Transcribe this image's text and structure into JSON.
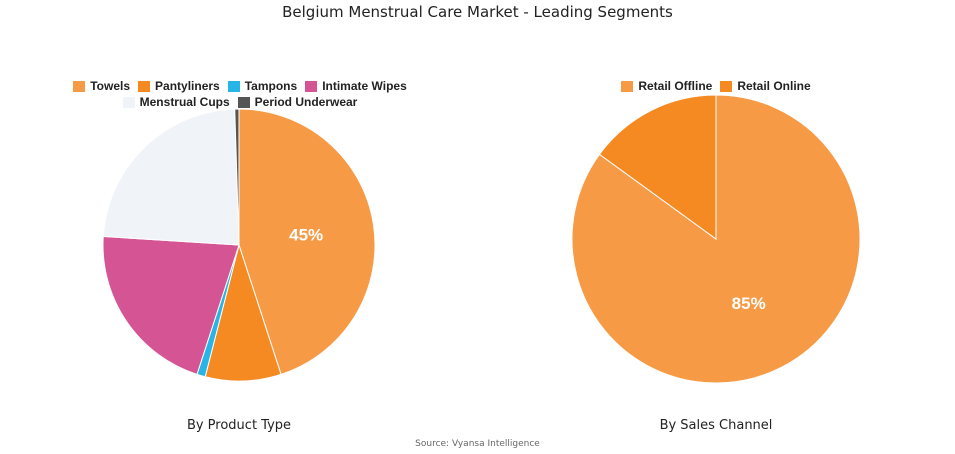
{
  "title": "Belgium Menstrual Care Market - Leading Segments",
  "source": "Source: Vyansa Intelligence",
  "chart_data": [
    {
      "type": "pie",
      "title": "By Product Type",
      "legend_position": "top",
      "slices": [
        {
          "label": "Towels",
          "value": 45,
          "color": "#F79A45",
          "data_label": "45%"
        },
        {
          "label": "Pantyliners",
          "value": 9,
          "color": "#F58A23",
          "data_label": ""
        },
        {
          "label": "Tampons",
          "value": 1,
          "color": "#27B4E6",
          "data_label": ""
        },
        {
          "label": "Intimate Wipes",
          "value": 21,
          "color": "#D55594",
          "data_label": ""
        },
        {
          "label": "Menstrual Cups",
          "value": 23.5,
          "color": "#F0F4F8",
          "data_label": ""
        },
        {
          "label": "Period Underwear",
          "value": 0.5,
          "color": "#555555",
          "data_label": ""
        }
      ]
    },
    {
      "type": "pie",
      "title": "By Sales Channel",
      "legend_position": "top",
      "slices": [
        {
          "label": "Retail Offline",
          "value": 85,
          "color": "#F79A45",
          "data_label": "85%"
        },
        {
          "label": "Retail Online",
          "value": 15,
          "color": "#F58A23",
          "data_label": ""
        }
      ]
    }
  ]
}
